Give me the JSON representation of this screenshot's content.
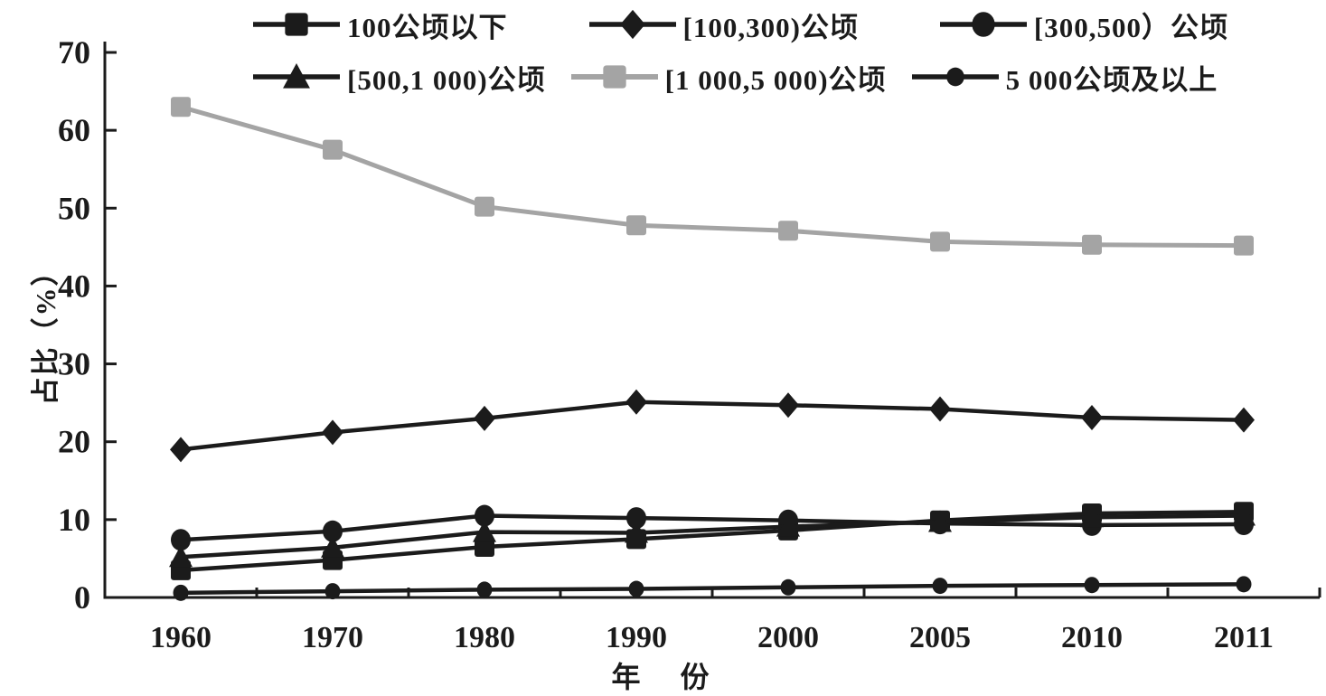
{
  "chart_data": {
    "type": "line",
    "title": "",
    "categories": [
      "1960",
      "1970",
      "1980",
      "1990",
      "2000",
      "2005",
      "2010",
      "2011"
    ],
    "series": [
      {
        "name": "100公顷以下",
        "marker": "square",
        "color": "#1b1b1b",
        "values": [
          3.5,
          4.8,
          6.5,
          7.5,
          8.6,
          9.9,
          10.8,
          11.0
        ]
      },
      {
        "name": "[100,300)公顷",
        "marker": "diamond",
        "color": "#1b1b1b",
        "values": [
          19.0,
          21.2,
          23.0,
          25.1,
          24.7,
          24.2,
          23.1,
          22.8
        ]
      },
      {
        "name": "[300,500）公顷",
        "marker": "circle",
        "color": "#1b1b1b",
        "values": [
          7.4,
          8.5,
          10.5,
          10.2,
          9.9,
          9.5,
          9.3,
          9.4
        ]
      },
      {
        "name": "[500,1 000)公顷",
        "marker": "triangle",
        "color": "#1b1b1b",
        "values": [
          5.2,
          6.4,
          8.4,
          8.3,
          9.1,
          9.7,
          10.3,
          10.5
        ]
      },
      {
        "name": "[1 000,5 000)公顷",
        "marker": "square",
        "color": "#a4a4a4",
        "values": [
          63.0,
          57.5,
          50.2,
          47.8,
          47.1,
          45.7,
          45.3,
          45.2
        ]
      },
      {
        "name": "5 000公顷及以上",
        "marker": "small-circle",
        "color": "#1b1b1b",
        "values": [
          0.6,
          0.8,
          1.0,
          1.1,
          1.3,
          1.5,
          1.6,
          1.7
        ]
      }
    ],
    "xlabel": "年　份",
    "ylabel": "占比（%）",
    "ylim": [
      0,
      70
    ],
    "yticks": [
      0,
      10,
      20,
      30,
      40,
      50,
      60,
      70
    ],
    "grid": false,
    "legend_position": "top",
    "legend_rows": [
      [
        0,
        1,
        2
      ],
      [
        3,
        4,
        5
      ]
    ],
    "axis_color": "#1b1b1b"
  }
}
